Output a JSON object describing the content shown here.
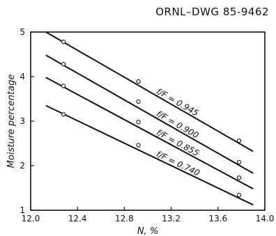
{
  "drawing_id": "ORNL–DWG 85-9462",
  "chart_data": {
    "type": "line",
    "title": "",
    "xlabel": "N, %",
    "ylabel": "Moisture percentage",
    "xlim": [
      12.0,
      14.0
    ],
    "ylim": [
      1,
      5
    ],
    "xticks": [
      "12.0",
      "12.4",
      "12.8",
      "13.2",
      "13.6",
      "14.0"
    ],
    "yticks": [
      "1",
      "2",
      "3",
      "4",
      "5"
    ],
    "grid": false,
    "series": [
      {
        "name": "f/F = 0.945",
        "line": [
          [
            12.13,
            5.0
          ],
          [
            13.9,
            2.32
          ]
        ],
        "markers": [
          [
            12.28,
            4.78
          ],
          [
            12.92,
            3.89
          ],
          [
            13.78,
            2.56
          ]
        ]
      },
      {
        "name": "f/F = 0.900",
        "line": [
          [
            12.13,
            4.48
          ],
          [
            13.9,
            1.83
          ]
        ],
        "markers": [
          [
            12.28,
            4.28
          ],
          [
            12.92,
            3.44
          ],
          [
            13.78,
            2.08
          ]
        ]
      },
      {
        "name": "f/F = 0.855",
        "line": [
          [
            12.13,
            3.98
          ],
          [
            13.9,
            1.48
          ]
        ],
        "markers": [
          [
            12.28,
            3.79
          ],
          [
            12.92,
            2.98
          ],
          [
            13.78,
            1.73
          ]
        ]
      },
      {
        "name": "f/F = 0.740",
        "line": [
          [
            12.13,
            3.35
          ],
          [
            13.9,
            1.12
          ]
        ],
        "markers": [
          [
            12.28,
            3.15
          ],
          [
            12.92,
            2.46
          ],
          [
            13.78,
            1.34
          ]
        ]
      }
    ]
  }
}
